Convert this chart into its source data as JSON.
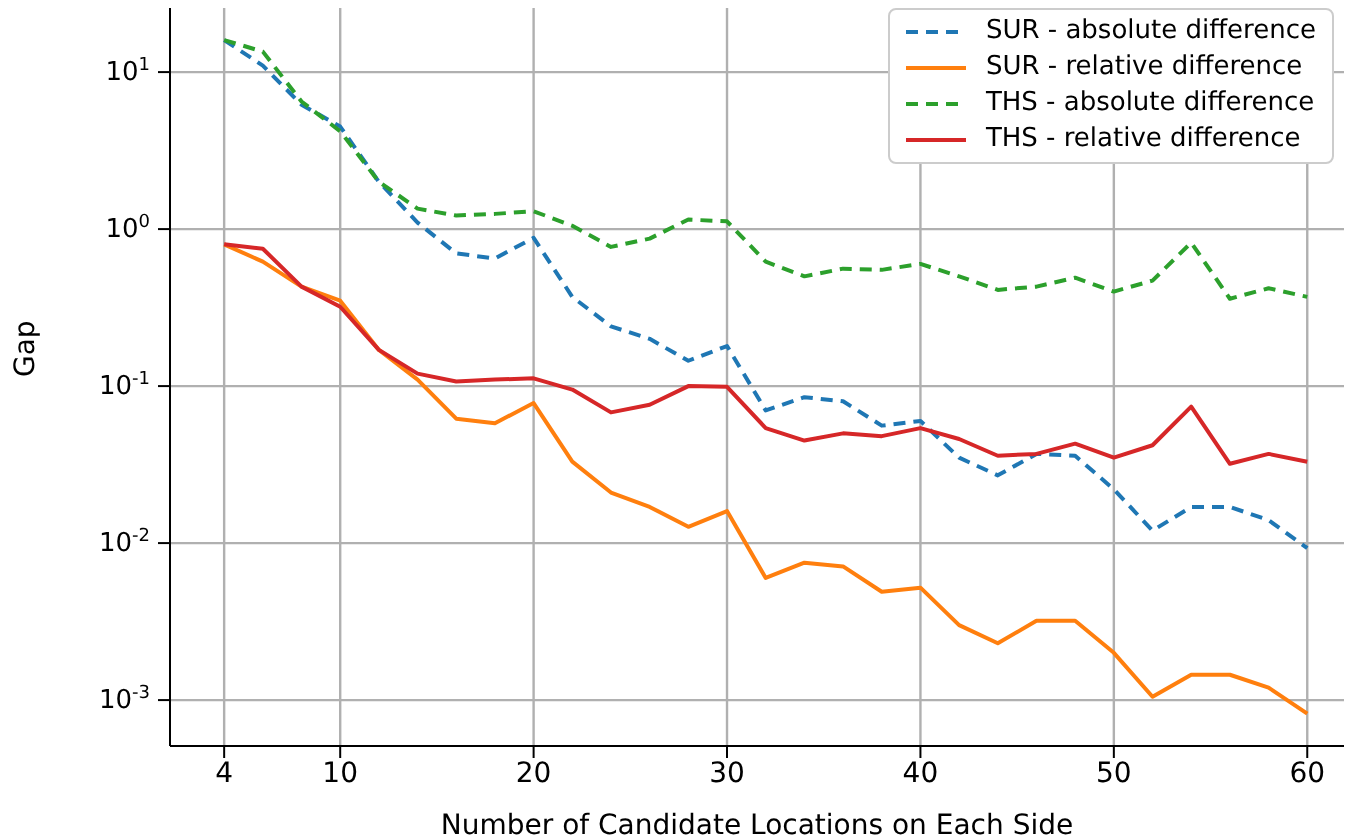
{
  "chart_data": {
    "type": "line",
    "xlabel": "Number of Candidate Locations on Each Side",
    "ylabel": "Gap",
    "log": "y",
    "grid": true,
    "legend": "top right",
    "marker": "none",
    "x": [
      4,
      6,
      8,
      10,
      12,
      14,
      16,
      18,
      20,
      22,
      24,
      26,
      28,
      30,
      32,
      34,
      36,
      38,
      40,
      42,
      44,
      46,
      48,
      50,
      52,
      54,
      56,
      58,
      60
    ],
    "xlim": [
      1.2,
      61.9
    ],
    "xticks": [
      4,
      10,
      20,
      30,
      40,
      50,
      60
    ],
    "ylim": [
      0.00051,
      25.6
    ],
    "yticks": [
      {
        "value": 0.001,
        "label": "10$^{-3}$"
      },
      {
        "value": 0.01,
        "label": "10$^{-2}$"
      },
      {
        "value": 0.1,
        "label": "10$^{-1}$"
      },
      {
        "value": 1,
        "label": "10$^{0}$"
      },
      {
        "value": 10,
        "label": "10$^{1}$"
      }
    ],
    "series": [
      {
        "name": "SUR - absolute difference",
        "color": "#1f77b4",
        "line_style": "dashed",
        "values": [
          16,
          11,
          6.2,
          4.5,
          2,
          1.1,
          0.7,
          0.65,
          0.88,
          0.37,
          0.24,
          0.2,
          0.145,
          0.18,
          0.07,
          0.085,
          0.08,
          0.056,
          0.06,
          0.035,
          0.027,
          0.037,
          0.036,
          0.022,
          0.012,
          0.017,
          0.017,
          0.014,
          0.0093
        ]
      },
      {
        "name": "SUR - relative difference",
        "color": "#ff7f0e",
        "line_style": "solid",
        "values": [
          0.8,
          0.62,
          0.43,
          0.35,
          0.17,
          0.11,
          0.062,
          0.058,
          0.078,
          0.033,
          0.021,
          0.017,
          0.0127,
          0.016,
          0.006,
          0.0075,
          0.0071,
          0.0049,
          0.0052,
          0.003,
          0.0023,
          0.0032,
          0.0032,
          0.002,
          0.00105,
          0.00145,
          0.00145,
          0.0012,
          0.00082
        ]
      },
      {
        "name": "THS - absolute difference",
        "color": "#2ca02c",
        "line_style": "dashed",
        "values": [
          16,
          13.5,
          6.5,
          4.2,
          2,
          1.35,
          1.22,
          1.25,
          1.3,
          1.05,
          0.77,
          0.87,
          1.15,
          1.12,
          0.62,
          0.5,
          0.56,
          0.55,
          0.6,
          0.5,
          0.41,
          0.43,
          0.49,
          0.4,
          0.47,
          0.82,
          0.36,
          0.42,
          0.37
        ]
      },
      {
        "name": "THS - relative difference",
        "color": "#d62728",
        "line_style": "solid",
        "values": [
          0.8,
          0.75,
          0.43,
          0.32,
          0.17,
          0.12,
          0.107,
          0.11,
          0.112,
          0.095,
          0.068,
          0.076,
          0.1,
          0.099,
          0.054,
          0.045,
          0.05,
          0.048,
          0.054,
          0.046,
          0.036,
          0.037,
          0.043,
          0.035,
          0.042,
          0.074,
          0.032,
          0.037,
          0.033
        ]
      }
    ]
  }
}
